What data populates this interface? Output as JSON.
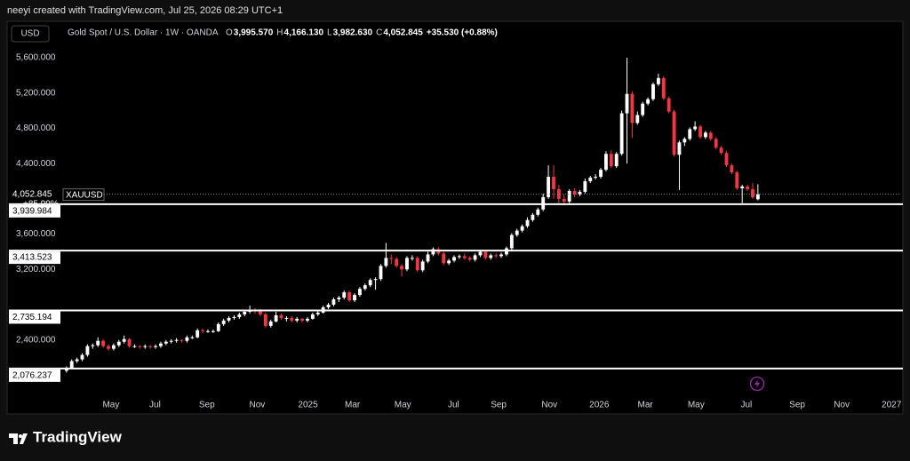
{
  "header": {
    "credit": "neeyi created with TradingView.com, Jul 25, 2026 08:29 UTC+1",
    "currency": "USD",
    "symbol_title": "Gold Spot / U.S. Dollar · 1W · OANDA",
    "ohlc": [
      {
        "label": "O",
        "value": "3,995.570"
      },
      {
        "label": "H",
        "value": "4,166.130"
      },
      {
        "label": "L",
        "value": "3,982.630"
      },
      {
        "label": "C",
        "value": "4,052.845"
      }
    ],
    "change": "+35.530 (+0.88%)"
  },
  "chart_data": {
    "type": "candlestick",
    "up_color": "#ffffff",
    "down_color": "#f23645",
    "ylim": [
      1793,
      5731
    ],
    "xlim": [
      -11,
      159
    ],
    "yticks": [
      {
        "value": 5600,
        "label": "5,600.000"
      },
      {
        "value": 5200,
        "label": "5,200.000"
      },
      {
        "value": 4800,
        "label": "4,800.000"
      },
      {
        "value": 4400,
        "label": "4,400.000"
      },
      {
        "value": 3600,
        "label": "3,600.000"
      },
      {
        "value": 3200,
        "label": "3,200.000"
      },
      {
        "value": 2400,
        "label": "2,400.000"
      }
    ],
    "xticks": [
      {
        "value": 8.5,
        "label": "May"
      },
      {
        "value": 16.9,
        "label": "Jul"
      },
      {
        "value": 26.8,
        "label": "Sep"
      },
      {
        "value": 36.4,
        "label": "Nov"
      },
      {
        "value": 46.1,
        "label": "2025"
      },
      {
        "value": 54.6,
        "label": "Mar"
      },
      {
        "value": 64.2,
        "label": "May"
      },
      {
        "value": 73.9,
        "label": "Jul"
      },
      {
        "value": 82.5,
        "label": "Sep"
      },
      {
        "value": 92.2,
        "label": "Nov"
      },
      {
        "value": 101.7,
        "label": "2026"
      },
      {
        "value": 110.5,
        "label": "Mar"
      },
      {
        "value": 120.2,
        "label": "May"
      },
      {
        "value": 129.8,
        "label": "Jul"
      },
      {
        "value": 139.5,
        "label": "Sep"
      },
      {
        "value": 148,
        "label": "Nov"
      },
      {
        "value": 157.5,
        "label": "2027"
      }
    ],
    "levels": [
      {
        "value": 3939.984,
        "label": "3,939.984"
      },
      {
        "value": 3413.523,
        "label": "3,413.523"
      },
      {
        "value": 2735.194,
        "label": "2,735.194"
      },
      {
        "value": 2076.237,
        "label": "2,076.237"
      }
    ],
    "last_price": {
      "value": 4052.845,
      "label": "4,052.845",
      "change": "+85.99%",
      "symbol": "XAUUSD"
    },
    "candles": [
      [
        2050,
        2100,
        2030,
        2080
      ],
      [
        2080,
        2180,
        2070,
        2160
      ],
      [
        2160,
        2200,
        2140,
        2180
      ],
      [
        2180,
        2250,
        2160,
        2230
      ],
      [
        2230,
        2350,
        2210,
        2330
      ],
      [
        2330,
        2360,
        2300,
        2340
      ],
      [
        2340,
        2430,
        2320,
        2390
      ],
      [
        2390,
        2410,
        2310,
        2330
      ],
      [
        2330,
        2350,
        2280,
        2300
      ],
      [
        2300,
        2360,
        2280,
        2340
      ],
      [
        2340,
        2400,
        2320,
        2380
      ],
      [
        2380,
        2450,
        2360,
        2410
      ],
      [
        2410,
        2420,
        2310,
        2330
      ],
      [
        2330,
        2350,
        2310,
        2330
      ],
      [
        2330,
        2340,
        2300,
        2320
      ],
      [
        2320,
        2350,
        2300,
        2330
      ],
      [
        2330,
        2340,
        2300,
        2320
      ],
      [
        2320,
        2350,
        2300,
        2330
      ],
      [
        2330,
        2380,
        2310,
        2360
      ],
      [
        2360,
        2400,
        2340,
        2380
      ],
      [
        2380,
        2410,
        2360,
        2390
      ],
      [
        2390,
        2420,
        2370,
        2400
      ],
      [
        2400,
        2410,
        2370,
        2390
      ],
      [
        2390,
        2450,
        2370,
        2430
      ],
      [
        2430,
        2450,
        2410,
        2430
      ],
      [
        2430,
        2530,
        2420,
        2510
      ],
      [
        2510,
        2530,
        2480,
        2500
      ],
      [
        2500,
        2520,
        2480,
        2500
      ],
      [
        2500,
        2520,
        2480,
        2500
      ],
      [
        2500,
        2600,
        2490,
        2580
      ],
      [
        2580,
        2640,
        2560,
        2620
      ],
      [
        2620,
        2670,
        2600,
        2650
      ],
      [
        2650,
        2680,
        2630,
        2660
      ],
      [
        2660,
        2710,
        2640,
        2690
      ],
      [
        2690,
        2740,
        2670,
        2720
      ],
      [
        2720,
        2790,
        2700,
        2740
      ],
      [
        2740,
        2760,
        2700,
        2730
      ],
      [
        2730,
        2750,
        2670,
        2690
      ],
      [
        2690,
        2710,
        2540,
        2560
      ],
      [
        2560,
        2630,
        2540,
        2610
      ],
      [
        2610,
        2720,
        2600,
        2680
      ],
      [
        2680,
        2700,
        2630,
        2650
      ],
      [
        2650,
        2670,
        2610,
        2650
      ],
      [
        2650,
        2670,
        2600,
        2620
      ],
      [
        2620,
        2660,
        2600,
        2640
      ],
      [
        2640,
        2650,
        2600,
        2620
      ],
      [
        2620,
        2660,
        2600,
        2640
      ],
      [
        2640,
        2710,
        2630,
        2690
      ],
      [
        2690,
        2730,
        2670,
        2710
      ],
      [
        2710,
        2790,
        2700,
        2770
      ],
      [
        2770,
        2820,
        2750,
        2800
      ],
      [
        2800,
        2880,
        2780,
        2860
      ],
      [
        2860,
        2900,
        2830,
        2880
      ],
      [
        2880,
        2960,
        2860,
        2940
      ],
      [
        2940,
        2960,
        2830,
        2850
      ],
      [
        2850,
        2930,
        2830,
        2910
      ],
      [
        2910,
        3000,
        2890,
        2980
      ],
      [
        2980,
        3040,
        2960,
        3020
      ],
      [
        3020,
        3100,
        3000,
        3080
      ],
      [
        3080,
        3110,
        2970,
        3090
      ],
      [
        3090,
        3260,
        3070,
        3240
      ],
      [
        3240,
        3500,
        3220,
        3330
      ],
      [
        3330,
        3370,
        3260,
        3320
      ],
      [
        3320,
        3340,
        3220,
        3240
      ],
      [
        3240,
        3260,
        3120,
        3200
      ],
      [
        3200,
        3350,
        3180,
        3330
      ],
      [
        3330,
        3360,
        3300,
        3330
      ],
      [
        3330,
        3350,
        3170,
        3190
      ],
      [
        3190,
        3310,
        3170,
        3290
      ],
      [
        3290,
        3400,
        3270,
        3370
      ],
      [
        3370,
        3450,
        3350,
        3430
      ],
      [
        3430,
        3450,
        3360,
        3380
      ],
      [
        3380,
        3400,
        3250,
        3270
      ],
      [
        3270,
        3320,
        3250,
        3300
      ],
      [
        3300,
        3360,
        3280,
        3340
      ],
      [
        3340,
        3370,
        3320,
        3350
      ],
      [
        3350,
        3380,
        3310,
        3330
      ],
      [
        3330,
        3350,
        3290,
        3310
      ],
      [
        3310,
        3380,
        3290,
        3360
      ],
      [
        3360,
        3420,
        3340,
        3400
      ],
      [
        3400,
        3410,
        3310,
        3330
      ],
      [
        3330,
        3380,
        3310,
        3360
      ],
      [
        3360,
        3380,
        3330,
        3350
      ],
      [
        3350,
        3390,
        3330,
        3370
      ],
      [
        3370,
        3460,
        3350,
        3440
      ],
      [
        3440,
        3610,
        3420,
        3590
      ],
      [
        3590,
        3660,
        3570,
        3640
      ],
      [
        3640,
        3710,
        3620,
        3690
      ],
      [
        3690,
        3790,
        3670,
        3760
      ],
      [
        3760,
        3840,
        3740,
        3820
      ],
      [
        3820,
        3900,
        3800,
        3880
      ],
      [
        3880,
        4060,
        3860,
        4020
      ],
      [
        4020,
        4380,
        4000,
        4250
      ],
      [
        4250,
        4380,
        4000,
        4110
      ],
      [
        4110,
        4160,
        3950,
        4000
      ],
      [
        4000,
        4050,
        3930,
        3970
      ],
      [
        3970,
        4110,
        3950,
        4090
      ],
      [
        4090,
        4120,
        4020,
        4050
      ],
      [
        4050,
        4100,
        4030,
        4080
      ],
      [
        4080,
        4230,
        4060,
        4200
      ],
      [
        4200,
        4260,
        4180,
        4240
      ],
      [
        4240,
        4280,
        4220,
        4250
      ],
      [
        4250,
        4350,
        4230,
        4330
      ],
      [
        4330,
        4540,
        4310,
        4510
      ],
      [
        4510,
        4550,
        4350,
        4370
      ],
      [
        4370,
        4530,
        4350,
        4510
      ],
      [
        4510,
        5000,
        4490,
        4970
      ],
      [
        4970,
        5600,
        4400,
        5190
      ],
      [
        5190,
        5220,
        4690,
        4860
      ],
      [
        4860,
        4990,
        4840,
        4950
      ],
      [
        4950,
        5100,
        4930,
        5080
      ],
      [
        5080,
        5150,
        5060,
        5130
      ],
      [
        5130,
        5320,
        5110,
        5300
      ],
      [
        5300,
        5420,
        5280,
        5370
      ],
      [
        5370,
        5390,
        5120,
        5140
      ],
      [
        5140,
        5160,
        4970,
        4990
      ],
      [
        4990,
        5010,
        4480,
        4500
      ],
      [
        4500,
        4660,
        4100,
        4640
      ],
      [
        4640,
        4700,
        4600,
        4680
      ],
      [
        4680,
        4810,
        4660,
        4790
      ],
      [
        4790,
        4880,
        4770,
        4820
      ],
      [
        4820,
        4840,
        4680,
        4700
      ],
      [
        4700,
        4770,
        4680,
        4750
      ],
      [
        4750,
        4770,
        4660,
        4680
      ],
      [
        4680,
        4700,
        4560,
        4580
      ],
      [
        4580,
        4600,
        4500,
        4520
      ],
      [
        4520,
        4540,
        4360,
        4380
      ],
      [
        4380,
        4400,
        4280,
        4300
      ],
      [
        4300,
        4320,
        4100,
        4120
      ],
      [
        4120,
        4160,
        3950,
        4140
      ],
      [
        4140,
        4160,
        4090,
        4110
      ],
      [
        4110,
        4180,
        4000,
        4017.315
      ],
      [
        3995.57,
        4166.13,
        3982.63,
        4052.845
      ]
    ]
  },
  "footer": {
    "brand": "TradingView"
  }
}
